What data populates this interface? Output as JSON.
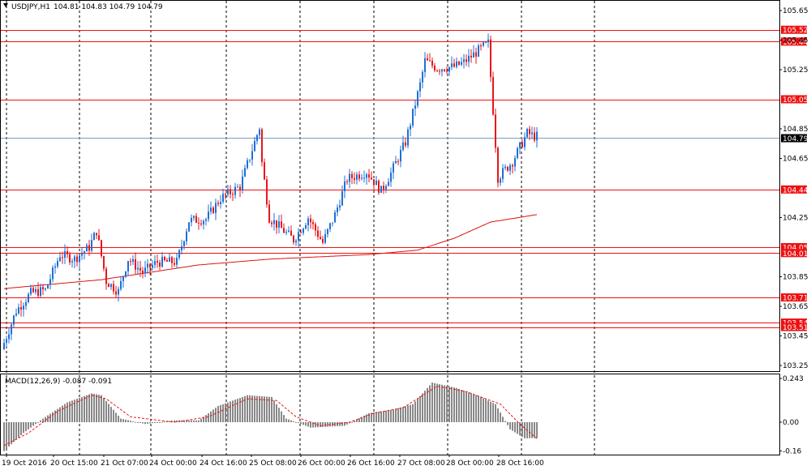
{
  "chart_data": {
    "type": "candlestick",
    "header": {
      "symbol": "USDJPY,H1",
      "ohlc": "104.81 104.83 104.79 104.79",
      "indicator_label": "MACD(12,26,9) -0.087 -0.091"
    },
    "colors": {
      "bull": "#1e6fd6",
      "bear": "#e8161b",
      "level_line": "#ee1111",
      "ma_line": "#dd1111",
      "current_line": "#7f9cbc",
      "macd_bar": "#888888",
      "signal_line": "#ee1111",
      "grid": "#000000"
    },
    "price_axis": {
      "ylim": [
        103.15,
        105.7
      ],
      "ticks": [
        "105.65",
        "105.45",
        "105.25",
        "104.85",
        "104.65",
        "104.25",
        "103.85",
        "103.65",
        "103.45",
        "103.25"
      ]
    },
    "time_axis": {
      "labels": [
        "19 Oct 2016",
        "20 Oct 15:00",
        "21 Oct 07:00",
        "24 Oct 00:00",
        "24 Oct 16:00",
        "25 Oct 08:00",
        "26 Oct 00:00",
        "26 Oct 16:00",
        "27 Oct 08:00",
        "28 Oct 00:00",
        "28 Oct 16:00"
      ]
    },
    "grid_visible": true,
    "horizontal_levels": [
      {
        "price": 105.52,
        "label": "105.52"
      },
      {
        "price": 105.44,
        "label": "105.44"
      },
      {
        "price": 105.05,
        "label": "105.05"
      },
      {
        "price": 104.44,
        "label": "104.44"
      },
      {
        "price": 104.05,
        "label": "104.05"
      },
      {
        "price": 104.01,
        "label": "104.01"
      },
      {
        "price": 103.71,
        "label": "103.71"
      },
      {
        "price": 103.54,
        "label": "103.54"
      },
      {
        "price": 103.51,
        "label": "103.51"
      }
    ],
    "current_price": {
      "price": 104.79,
      "label": "104.79"
    },
    "price_series_anchors": [
      [
        0,
        103.36
      ],
      [
        6,
        103.62
      ],
      [
        12,
        103.74
      ],
      [
        18,
        103.76
      ],
      [
        24,
        104.0
      ],
      [
        30,
        103.97
      ],
      [
        36,
        104.05
      ],
      [
        39,
        104.16
      ],
      [
        43,
        103.82
      ],
      [
        48,
        103.75
      ],
      [
        52,
        103.97
      ],
      [
        58,
        103.88
      ],
      [
        64,
        103.95
      ],
      [
        72,
        103.95
      ],
      [
        77,
        104.23
      ],
      [
        84,
        104.24
      ],
      [
        90,
        104.38
      ],
      [
        98,
        104.46
      ],
      [
        106,
        104.86
      ],
      [
        107,
        104.62
      ],
      [
        110,
        104.25
      ],
      [
        120,
        104.1
      ],
      [
        126,
        104.25
      ],
      [
        132,
        104.08
      ],
      [
        137,
        104.27
      ],
      [
        142,
        104.51
      ],
      [
        150,
        104.56
      ],
      [
        156,
        104.43
      ],
      [
        160,
        104.55
      ],
      [
        166,
        104.76
      ],
      [
        172,
        105.15
      ],
      [
        174,
        105.31
      ],
      [
        179,
        105.26
      ],
      [
        186,
        105.27
      ],
      [
        190,
        105.3
      ],
      [
        196,
        105.38
      ],
      [
        200,
        105.43
      ],
      [
        204,
        104.52
      ],
      [
        210,
        104.63
      ],
      [
        216,
        104.82
      ],
      [
        219,
        104.8
      ]
    ],
    "ma_series": [
      [
        0,
        103.77
      ],
      [
        40,
        103.83
      ],
      [
        80,
        103.93
      ],
      [
        110,
        103.97
      ],
      [
        150,
        104.0
      ],
      [
        170,
        104.03
      ],
      [
        185,
        104.11
      ],
      [
        200,
        104.22
      ],
      [
        219,
        104.27
      ]
    ],
    "macd": {
      "ylim": [
        -0.2,
        0.28
      ],
      "ticks": [
        "0.243",
        "0.00",
        "-0.16"
      ],
      "anchors": [
        [
          0,
          -0.16
        ],
        [
          8,
          -0.06
        ],
        [
          16,
          0.02
        ],
        [
          26,
          0.11
        ],
        [
          36,
          0.16
        ],
        [
          40,
          0.15
        ],
        [
          48,
          0.02
        ],
        [
          58,
          -0.01
        ],
        [
          70,
          0.01
        ],
        [
          80,
          0.01
        ],
        [
          88,
          0.09
        ],
        [
          100,
          0.15
        ],
        [
          110,
          0.14
        ],
        [
          116,
          0.02
        ],
        [
          126,
          -0.03
        ],
        [
          140,
          -0.02
        ],
        [
          150,
          0.05
        ],
        [
          160,
          0.07
        ],
        [
          168,
          0.1
        ],
        [
          176,
          0.22
        ],
        [
          186,
          0.19
        ],
        [
          196,
          0.14
        ],
        [
          202,
          0.1
        ],
        [
          208,
          -0.04
        ],
        [
          214,
          -0.09
        ],
        [
          219,
          -0.087
        ]
      ],
      "signal_anchors": [
        [
          0,
          -0.13
        ],
        [
          10,
          -0.06
        ],
        [
          22,
          0.06
        ],
        [
          36,
          0.15
        ],
        [
          42,
          0.13
        ],
        [
          52,
          0.03
        ],
        [
          70,
          0.0
        ],
        [
          84,
          0.03
        ],
        [
          100,
          0.13
        ],
        [
          112,
          0.12
        ],
        [
          120,
          0.03
        ],
        [
          130,
          -0.02
        ],
        [
          142,
          0.0
        ],
        [
          152,
          0.05
        ],
        [
          164,
          0.08
        ],
        [
          178,
          0.2
        ],
        [
          190,
          0.17
        ],
        [
          204,
          0.1
        ],
        [
          212,
          -0.01
        ],
        [
          219,
          -0.091
        ]
      ]
    }
  }
}
